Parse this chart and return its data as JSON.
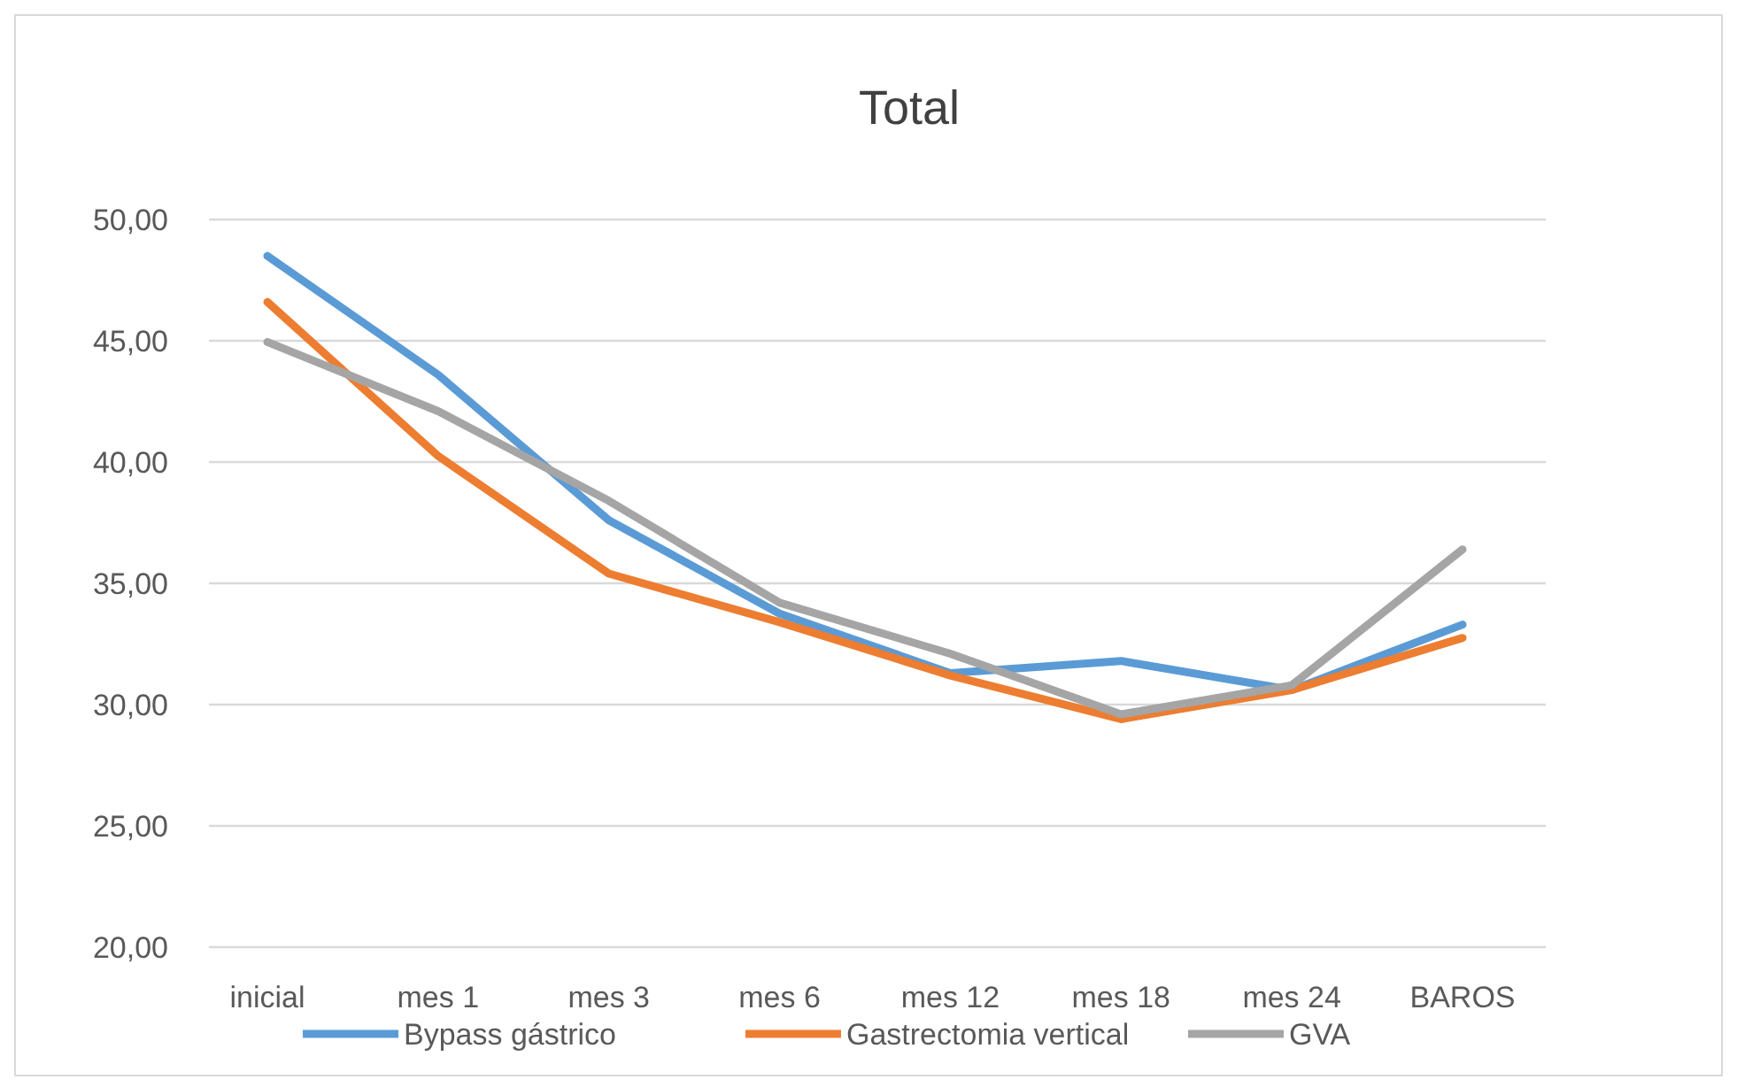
{
  "chart_data": {
    "type": "line",
    "title": "Total",
    "categories": [
      "inicial",
      "mes 1",
      "mes 3",
      "mes 6",
      "mes 12",
      "mes 18",
      "mes 24",
      "BAROS"
    ],
    "series": [
      {
        "name": "Bypass gástrico",
        "color": "#5b9bd5",
        "values": [
          48.5,
          43.6,
          37.6,
          33.75,
          31.3,
          31.8,
          30.6,
          33.3
        ]
      },
      {
        "name": "Gastrectomia vertical",
        "color": "#ed7d31",
        "values": [
          46.6,
          40.25,
          35.4,
          33.4,
          31.2,
          29.4,
          30.6,
          32.75
        ]
      },
      {
        "name": "GVA",
        "color": "#a5a5a5",
        "values": [
          44.95,
          42.1,
          38.4,
          34.2,
          32.1,
          29.6,
          30.8,
          36.4
        ]
      }
    ],
    "ylim": [
      20,
      50
    ],
    "yticks": [
      {
        "value": 20,
        "label": "20,00"
      },
      {
        "value": 25,
        "label": "25,00"
      },
      {
        "value": 30,
        "label": "30,00"
      },
      {
        "value": 35,
        "label": "35,00"
      },
      {
        "value": 40,
        "label": "40,00"
      },
      {
        "value": 45,
        "label": "45,00"
      },
      {
        "value": 50,
        "label": "50,00"
      }
    ],
    "grid": "y",
    "legend": "bottom",
    "marker": "none",
    "line_style": "solid"
  }
}
